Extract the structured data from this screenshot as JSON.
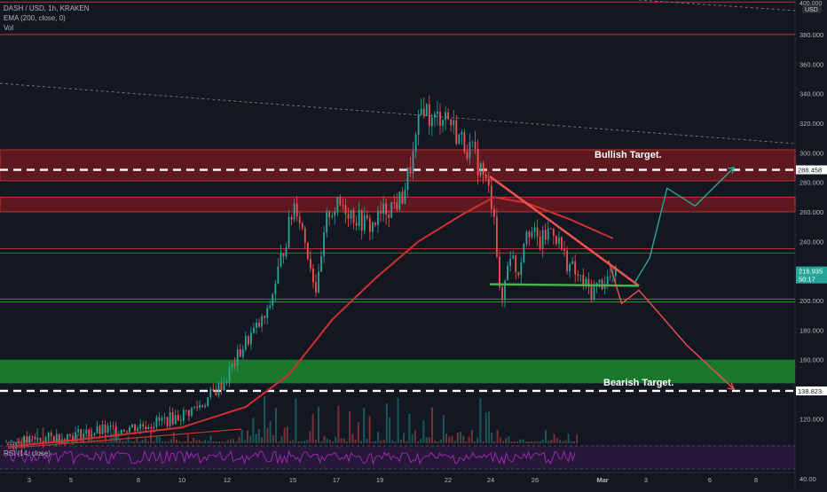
{
  "header": {
    "symbol_line": "DASH / USD, 1h, KRAKEN",
    "ema_line": "EMA (200, close, 0)",
    "vol_line": "Vol",
    "rsi_line": "RSI (14, close)"
  },
  "price_scale": {
    "top_label": "400.000",
    "currency": "USD",
    "current_price": "216.935",
    "countdown": "50:17",
    "bullish_level": "288.458",
    "bearish_level": "138.823",
    "rsi_label": "40.00"
  },
  "annotations": {
    "bullish": "Bullish Target.",
    "bearish": "Bearish Target."
  },
  "colors": {
    "background": "#131722",
    "up": "#26a69a",
    "down": "#ef5350",
    "ema": "#d32f2f",
    "resistance_zone": "#b71c1c",
    "support_zone": "#1b8a2e",
    "rsi_line": "#9c27b0",
    "bullish_path": "#26a69a",
    "bearish_path": "#ef5350"
  },
  "chart_data": {
    "type": "candlestick",
    "title": "DASH / USD, 1h, KRAKEN",
    "ylim": [
      100,
      400
    ],
    "y_ticks": [
      120,
      140,
      160,
      180,
      200,
      220,
      240,
      260,
      280,
      300,
      320,
      340,
      360,
      380
    ],
    "x_ticks": [
      "3",
      "5",
      "8",
      "10",
      "12",
      "15",
      "17",
      "19",
      "22",
      "24",
      "26",
      "Mar",
      "3",
      "6",
      "8"
    ],
    "price_path": [
      {
        "x": 0,
        "y": 103
      },
      {
        "x": 1,
        "y": 105
      },
      {
        "x": 2,
        "y": 107
      },
      {
        "x": 3,
        "y": 109
      },
      {
        "x": 4,
        "y": 111
      },
      {
        "x": 5,
        "y": 113
      },
      {
        "x": 6,
        "y": 115
      },
      {
        "x": 7,
        "y": 118
      },
      {
        "x": 8,
        "y": 122
      },
      {
        "x": 9,
        "y": 130
      },
      {
        "x": 10,
        "y": 145
      },
      {
        "x": 11,
        "y": 172
      },
      {
        "x": 12,
        "y": 190
      },
      {
        "x": 12.8,
        "y": 238
      },
      {
        "x": 13.3,
        "y": 268
      },
      {
        "x": 13.8,
        "y": 238
      },
      {
        "x": 14.3,
        "y": 205
      },
      {
        "x": 14.8,
        "y": 260
      },
      {
        "x": 15.5,
        "y": 265
      },
      {
        "x": 16.2,
        "y": 255
      },
      {
        "x": 16.8,
        "y": 250
      },
      {
        "x": 17.5,
        "y": 262
      },
      {
        "x": 18.2,
        "y": 268
      },
      {
        "x": 18.8,
        "y": 300
      },
      {
        "x": 19.2,
        "y": 335
      },
      {
        "x": 19.6,
        "y": 320
      },
      {
        "x": 20.2,
        "y": 328
      },
      {
        "x": 20.8,
        "y": 312
      },
      {
        "x": 21.5,
        "y": 300
      },
      {
        "x": 22.0,
        "y": 285
      },
      {
        "x": 22.5,
        "y": 262
      },
      {
        "x": 22.8,
        "y": 192
      },
      {
        "x": 23.2,
        "y": 235
      },
      {
        "x": 23.6,
        "y": 218
      },
      {
        "x": 24.0,
        "y": 252
      },
      {
        "x": 24.6,
        "y": 238
      },
      {
        "x": 25.2,
        "y": 250
      },
      {
        "x": 25.8,
        "y": 228
      },
      {
        "x": 26.4,
        "y": 215
      },
      {
        "x": 27.0,
        "y": 206
      },
      {
        "x": 27.6,
        "y": 214
      },
      {
        "x": 28.2,
        "y": 217
      }
    ],
    "ema200": [
      {
        "x": 0,
        "y": 101
      },
      {
        "x": 4,
        "y": 107
      },
      {
        "x": 8,
        "y": 114
      },
      {
        "x": 11,
        "y": 128
      },
      {
        "x": 13,
        "y": 150
      },
      {
        "x": 15,
        "y": 187
      },
      {
        "x": 17,
        "y": 215
      },
      {
        "x": 19,
        "y": 240
      },
      {
        "x": 21,
        "y": 258
      },
      {
        "x": 22.5,
        "y": 270
      },
      {
        "x": 24,
        "y": 266
      },
      {
        "x": 26,
        "y": 255
      },
      {
        "x": 28,
        "y": 242
      }
    ],
    "resistance_zones": [
      [
        281,
        302
      ],
      [
        260,
        270
      ]
    ],
    "support_zones": [
      [
        144,
        160
      ]
    ],
    "horizontal_levels": [
      402,
      380,
      232,
      235,
      201,
      199
    ],
    "bullish_target": 288.458,
    "bearish_target": 138.823,
    "triangle": {
      "upper": [
        {
          "x": 22.3,
          "y": 284
        },
        {
          "x": 29.2,
          "y": 210
        }
      ],
      "lower": [
        {
          "x": 22.3,
          "y": 211
        },
        {
          "x": 29.2,
          "y": 210
        }
      ]
    },
    "bullish_path": [
      {
        "x": 29.0,
        "y": 212
      },
      {
        "x": 29.7,
        "y": 229
      },
      {
        "x": 30.5,
        "y": 276
      },
      {
        "x": 31.8,
        "y": 264
      },
      {
        "x": 33.6,
        "y": 290
      }
    ],
    "bearish_path": [
      {
        "x": 27.8,
        "y": 227
      },
      {
        "x": 28.4,
        "y": 198
      },
      {
        "x": 29.2,
        "y": 207
      },
      {
        "x": 31.4,
        "y": 170
      },
      {
        "x": 33.6,
        "y": 140
      }
    ]
  }
}
